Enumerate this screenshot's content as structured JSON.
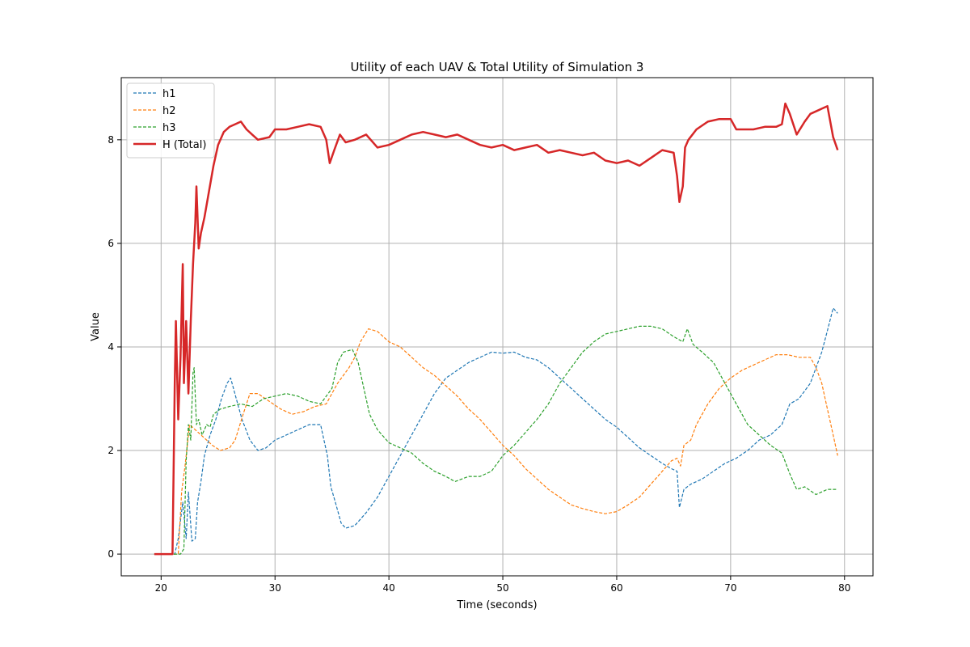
{
  "chart_data": {
    "type": "line",
    "title": "Utility of each UAV & Total Utility of Simulation 3",
    "xlabel": "Time (seconds)",
    "ylabel": "Value",
    "xlim": [
      16.5,
      82.5
    ],
    "ylim": [
      -0.42,
      9.2
    ],
    "xticks": [
      20,
      30,
      40,
      50,
      60,
      70,
      80
    ],
    "yticks": [
      0,
      2,
      4,
      6,
      8
    ],
    "grid": true,
    "legend_position": "upper-left",
    "series": [
      {
        "name": "h1",
        "color": "#1f77b4",
        "style": "dashed",
        "points": [
          [
            19.4,
            0
          ],
          [
            21.2,
            0
          ],
          [
            21.5,
            0.3
          ],
          [
            21.9,
            1.0
          ],
          [
            22.2,
            0.3
          ],
          [
            22.4,
            1.2
          ],
          [
            22.7,
            0.25
          ],
          [
            23.0,
            0.3
          ],
          [
            23.2,
            1.0
          ],
          [
            23.5,
            1.4
          ],
          [
            23.8,
            1.9
          ],
          [
            24.3,
            2.3
          ],
          [
            24.8,
            2.6
          ],
          [
            25.3,
            3.0
          ],
          [
            25.8,
            3.3
          ],
          [
            26.1,
            3.4
          ],
          [
            26.6,
            3.0
          ],
          [
            27.1,
            2.6
          ],
          [
            27.8,
            2.2
          ],
          [
            28.5,
            2.0
          ],
          [
            29.2,
            2.05
          ],
          [
            30.0,
            2.2
          ],
          [
            31.0,
            2.3
          ],
          [
            32.0,
            2.4
          ],
          [
            33.0,
            2.5
          ],
          [
            34.0,
            2.5
          ],
          [
            34.3,
            2.2
          ],
          [
            34.6,
            1.9
          ],
          [
            34.9,
            1.3
          ],
          [
            35.3,
            1.0
          ],
          [
            35.8,
            0.6
          ],
          [
            36.2,
            0.5
          ],
          [
            37.0,
            0.55
          ],
          [
            38.0,
            0.8
          ],
          [
            39.0,
            1.1
          ],
          [
            40.0,
            1.5
          ],
          [
            41.0,
            1.9
          ],
          [
            42.0,
            2.3
          ],
          [
            43.0,
            2.7
          ],
          [
            44.0,
            3.1
          ],
          [
            45.0,
            3.4
          ],
          [
            46.0,
            3.55
          ],
          [
            47.0,
            3.7
          ],
          [
            48.0,
            3.8
          ],
          [
            49.0,
            3.9
          ],
          [
            50.0,
            3.88
          ],
          [
            51.0,
            3.9
          ],
          [
            52.0,
            3.8
          ],
          [
            53.0,
            3.75
          ],
          [
            54.0,
            3.6
          ],
          [
            55.0,
            3.4
          ],
          [
            56.0,
            3.2
          ],
          [
            57.0,
            3.0
          ],
          [
            58.0,
            2.8
          ],
          [
            59.0,
            2.6
          ],
          [
            60.0,
            2.45
          ],
          [
            61.0,
            2.25
          ],
          [
            62.0,
            2.05
          ],
          [
            63.0,
            1.9
          ],
          [
            64.0,
            1.75
          ],
          [
            64.8,
            1.65
          ],
          [
            65.3,
            1.6
          ],
          [
            65.5,
            0.9
          ],
          [
            65.9,
            1.25
          ],
          [
            66.5,
            1.35
          ],
          [
            67.5,
            1.45
          ],
          [
            68.5,
            1.6
          ],
          [
            69.5,
            1.75
          ],
          [
            70.5,
            1.85
          ],
          [
            71.5,
            2.0
          ],
          [
            72.5,
            2.2
          ],
          [
            73.5,
            2.3
          ],
          [
            74.5,
            2.5
          ],
          [
            75.2,
            2.9
          ],
          [
            76.0,
            3.0
          ],
          [
            77.0,
            3.3
          ],
          [
            78.0,
            3.9
          ],
          [
            78.6,
            4.4
          ],
          [
            79.0,
            4.75
          ],
          [
            79.4,
            4.65
          ]
        ]
      },
      {
        "name": "h2",
        "color": "#ff7f0e",
        "style": "dashed",
        "points": [
          [
            19.4,
            0
          ],
          [
            21.5,
            0
          ],
          [
            21.8,
            1.2
          ],
          [
            22.1,
            1.7
          ],
          [
            22.5,
            2.5
          ],
          [
            23.0,
            2.4
          ],
          [
            23.5,
            2.3
          ],
          [
            24.0,
            2.2
          ],
          [
            24.5,
            2.1
          ],
          [
            25.2,
            2.0
          ],
          [
            26.0,
            2.05
          ],
          [
            26.5,
            2.2
          ],
          [
            27.2,
            2.7
          ],
          [
            27.8,
            3.1
          ],
          [
            28.5,
            3.1
          ],
          [
            29.5,
            2.95
          ],
          [
            30.5,
            2.8
          ],
          [
            31.5,
            2.7
          ],
          [
            32.5,
            2.75
          ],
          [
            33.5,
            2.85
          ],
          [
            34.5,
            2.9
          ],
          [
            35.5,
            3.3
          ],
          [
            36.5,
            3.6
          ],
          [
            37.0,
            3.8
          ],
          [
            37.5,
            4.1
          ],
          [
            38.2,
            4.35
          ],
          [
            39.0,
            4.3
          ],
          [
            40.0,
            4.1
          ],
          [
            41.0,
            4.0
          ],
          [
            42.0,
            3.8
          ],
          [
            43.0,
            3.6
          ],
          [
            44.0,
            3.45
          ],
          [
            45.0,
            3.25
          ],
          [
            46.0,
            3.05
          ],
          [
            47.0,
            2.8
          ],
          [
            48.0,
            2.6
          ],
          [
            49.0,
            2.35
          ],
          [
            50.0,
            2.1
          ],
          [
            51.0,
            1.9
          ],
          [
            52.0,
            1.65
          ],
          [
            53.0,
            1.45
          ],
          [
            54.0,
            1.25
          ],
          [
            55.0,
            1.1
          ],
          [
            56.0,
            0.95
          ],
          [
            57.0,
            0.88
          ],
          [
            58.0,
            0.82
          ],
          [
            59.0,
            0.78
          ],
          [
            60.0,
            0.82
          ],
          [
            61.0,
            0.95
          ],
          [
            62.0,
            1.1
          ],
          [
            63.0,
            1.35
          ],
          [
            64.0,
            1.6
          ],
          [
            64.8,
            1.8
          ],
          [
            65.3,
            1.85
          ],
          [
            65.6,
            1.7
          ],
          [
            65.9,
            2.1
          ],
          [
            66.5,
            2.2
          ],
          [
            67.0,
            2.5
          ],
          [
            68.0,
            2.9
          ],
          [
            69.0,
            3.2
          ],
          [
            70.0,
            3.4
          ],
          [
            71.0,
            3.55
          ],
          [
            72.0,
            3.65
          ],
          [
            73.0,
            3.75
          ],
          [
            74.0,
            3.85
          ],
          [
            75.0,
            3.85
          ],
          [
            76.0,
            3.8
          ],
          [
            77.0,
            3.8
          ],
          [
            77.5,
            3.6
          ],
          [
            78.0,
            3.3
          ],
          [
            78.5,
            2.8
          ],
          [
            79.0,
            2.3
          ],
          [
            79.4,
            1.9
          ]
        ]
      },
      {
        "name": "h3",
        "color": "#2ca02c",
        "style": "dashed",
        "points": [
          [
            19.4,
            0
          ],
          [
            21.7,
            0
          ],
          [
            22.0,
            0.1
          ],
          [
            22.2,
            1.8
          ],
          [
            22.4,
            2.5
          ],
          [
            22.6,
            2.2
          ],
          [
            22.8,
            3.5
          ],
          [
            22.9,
            3.6
          ],
          [
            23.1,
            2.5
          ],
          [
            23.3,
            2.6
          ],
          [
            23.6,
            2.3
          ],
          [
            24.0,
            2.5
          ],
          [
            24.3,
            2.45
          ],
          [
            24.6,
            2.7
          ],
          [
            25.2,
            2.8
          ],
          [
            26.0,
            2.85
          ],
          [
            27.0,
            2.9
          ],
          [
            28.0,
            2.85
          ],
          [
            29.0,
            3.0
          ],
          [
            30.0,
            3.05
          ],
          [
            31.0,
            3.1
          ],
          [
            32.0,
            3.05
          ],
          [
            33.0,
            2.95
          ],
          [
            34.0,
            2.9
          ],
          [
            35.0,
            3.2
          ],
          [
            35.5,
            3.7
          ],
          [
            36.0,
            3.9
          ],
          [
            36.8,
            3.95
          ],
          [
            37.3,
            3.7
          ],
          [
            37.8,
            3.2
          ],
          [
            38.3,
            2.7
          ],
          [
            39.0,
            2.4
          ],
          [
            40.0,
            2.15
          ],
          [
            41.0,
            2.05
          ],
          [
            42.0,
            1.95
          ],
          [
            43.0,
            1.75
          ],
          [
            44.0,
            1.6
          ],
          [
            45.0,
            1.5
          ],
          [
            45.8,
            1.4
          ],
          [
            47.0,
            1.5
          ],
          [
            48.0,
            1.5
          ],
          [
            49.0,
            1.6
          ],
          [
            50.0,
            1.9
          ],
          [
            51.0,
            2.1
          ],
          [
            52.0,
            2.35
          ],
          [
            53.0,
            2.6
          ],
          [
            54.0,
            2.9
          ],
          [
            55.0,
            3.3
          ],
          [
            56.0,
            3.6
          ],
          [
            57.0,
            3.9
          ],
          [
            58.0,
            4.1
          ],
          [
            59.0,
            4.25
          ],
          [
            60.0,
            4.3
          ],
          [
            61.0,
            4.35
          ],
          [
            62.0,
            4.4
          ],
          [
            63.0,
            4.4
          ],
          [
            64.0,
            4.35
          ],
          [
            65.0,
            4.2
          ],
          [
            65.8,
            4.1
          ],
          [
            66.2,
            4.35
          ],
          [
            66.7,
            4.05
          ],
          [
            67.5,
            3.9
          ],
          [
            68.5,
            3.7
          ],
          [
            69.5,
            3.3
          ],
          [
            70.5,
            2.9
          ],
          [
            71.5,
            2.5
          ],
          [
            72.5,
            2.3
          ],
          [
            73.5,
            2.1
          ],
          [
            74.5,
            1.95
          ],
          [
            75.2,
            1.55
          ],
          [
            75.8,
            1.25
          ],
          [
            76.5,
            1.3
          ],
          [
            77.5,
            1.15
          ],
          [
            78.5,
            1.25
          ],
          [
            79.4,
            1.25
          ]
        ]
      },
      {
        "name": "H (Total)",
        "color": "#d62728",
        "style": "solid",
        "points": [
          [
            19.4,
            0
          ],
          [
            21.0,
            0
          ],
          [
            21.2,
            3.3
          ],
          [
            21.3,
            4.5
          ],
          [
            21.5,
            2.6
          ],
          [
            21.7,
            3.8
          ],
          [
            21.9,
            5.6
          ],
          [
            22.0,
            3.3
          ],
          [
            22.2,
            4.5
          ],
          [
            22.4,
            3.1
          ],
          [
            22.6,
            4.5
          ],
          [
            22.8,
            5.6
          ],
          [
            23.0,
            6.4
          ],
          [
            23.1,
            7.1
          ],
          [
            23.3,
            5.9
          ],
          [
            23.5,
            6.2
          ],
          [
            23.8,
            6.5
          ],
          [
            24.2,
            7.0
          ],
          [
            24.6,
            7.5
          ],
          [
            25.0,
            7.9
          ],
          [
            25.5,
            8.15
          ],
          [
            26.0,
            8.25
          ],
          [
            26.5,
            8.3
          ],
          [
            27.0,
            8.35
          ],
          [
            27.5,
            8.2
          ],
          [
            28.0,
            8.1
          ],
          [
            28.5,
            8.0
          ],
          [
            29.5,
            8.05
          ],
          [
            30.0,
            8.2
          ],
          [
            31.0,
            8.2
          ],
          [
            32.0,
            8.25
          ],
          [
            33.0,
            8.3
          ],
          [
            34.0,
            8.25
          ],
          [
            34.5,
            8.0
          ],
          [
            34.8,
            7.55
          ],
          [
            35.2,
            7.8
          ],
          [
            35.7,
            8.1
          ],
          [
            36.2,
            7.95
          ],
          [
            37.0,
            8.0
          ],
          [
            38.0,
            8.1
          ],
          [
            39.0,
            7.85
          ],
          [
            40.0,
            7.9
          ],
          [
            41.0,
            8.0
          ],
          [
            42.0,
            8.1
          ],
          [
            43.0,
            8.15
          ],
          [
            44.0,
            8.1
          ],
          [
            45.0,
            8.05
          ],
          [
            46.0,
            8.1
          ],
          [
            47.0,
            8.0
          ],
          [
            48.0,
            7.9
          ],
          [
            49.0,
            7.85
          ],
          [
            50.0,
            7.9
          ],
          [
            51.0,
            7.8
          ],
          [
            52.0,
            7.85
          ],
          [
            53.0,
            7.9
          ],
          [
            54.0,
            7.75
          ],
          [
            55.0,
            7.8
          ],
          [
            56.0,
            7.75
          ],
          [
            57.0,
            7.7
          ],
          [
            58.0,
            7.75
          ],
          [
            59.0,
            7.6
          ],
          [
            60.0,
            7.55
          ],
          [
            61.0,
            7.6
          ],
          [
            62.0,
            7.5
          ],
          [
            63.0,
            7.65
          ],
          [
            64.0,
            7.8
          ],
          [
            65.0,
            7.75
          ],
          [
            65.3,
            7.3
          ],
          [
            65.5,
            6.8
          ],
          [
            65.8,
            7.1
          ],
          [
            66.0,
            7.85
          ],
          [
            66.3,
            8.0
          ],
          [
            67.0,
            8.2
          ],
          [
            68.0,
            8.35
          ],
          [
            69.0,
            8.4
          ],
          [
            70.0,
            8.4
          ],
          [
            70.5,
            8.2
          ],
          [
            71.0,
            8.2
          ],
          [
            72.0,
            8.2
          ],
          [
            73.0,
            8.25
          ],
          [
            74.0,
            8.25
          ],
          [
            74.5,
            8.3
          ],
          [
            74.8,
            8.7
          ],
          [
            75.2,
            8.5
          ],
          [
            75.8,
            8.1
          ],
          [
            76.5,
            8.35
          ],
          [
            77.0,
            8.5
          ],
          [
            78.0,
            8.6
          ],
          [
            78.5,
            8.65
          ],
          [
            79.0,
            8.05
          ],
          [
            79.4,
            7.8
          ]
        ]
      }
    ]
  }
}
